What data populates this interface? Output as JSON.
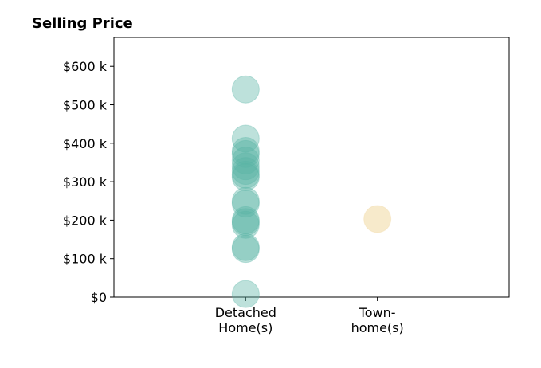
{
  "chart_data": {
    "type": "scatter",
    "title": "Selling Price",
    "xlabel": "",
    "ylabel": "",
    "categories": [
      {
        "lines": [
          "Detached",
          "Home(s)"
        ]
      },
      {
        "lines": [
          "Town-",
          "home(s)"
        ]
      }
    ],
    "yticks": [
      {
        "value": 0,
        "label": "$0"
      },
      {
        "value": 100000,
        "label": "$100 k"
      },
      {
        "value": 200000,
        "label": "$200 k"
      },
      {
        "value": 300000,
        "label": "$300 k"
      },
      {
        "value": 400000,
        "label": "$400 k"
      },
      {
        "value": 500000,
        "label": "$500 k"
      },
      {
        "value": 600000,
        "label": "$600 k"
      }
    ],
    "ylim": [
      0,
      675000
    ],
    "xlim": [
      -1,
      2
    ],
    "grid": false,
    "legend": "none",
    "series": [
      {
        "category_index": 0,
        "color": "#5ab4a6",
        "values": [
          540000,
          412000,
          380000,
          372000,
          355000,
          340000,
          328000,
          318000,
          312000,
          250000,
          243000,
          200000,
          195000,
          188000,
          130000,
          125000,
          8000
        ]
      },
      {
        "category_index": 1,
        "color": "#f0d8a0",
        "values": [
          203000
        ]
      }
    ]
  }
}
